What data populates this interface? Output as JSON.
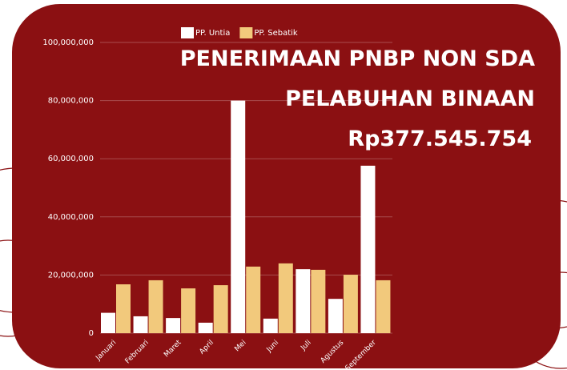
{
  "chart_data": {
    "type": "bar",
    "title": "PENERIMAAN PNBP NON SDA",
    "subtitle": "PELABUHAN BINAAN",
    "annotations": [
      "Rp377.545.754"
    ],
    "categories": [
      "Januari",
      "Februari",
      "Maret",
      "April",
      "Mei",
      "Juni",
      "Juli",
      "Agustus",
      "September"
    ],
    "series": [
      {
        "name": "PP. Untia",
        "color": "#ffffff",
        "values": [
          7000000,
          5800000,
          5200000,
          3600000,
          80000000,
          5000000,
          22000000,
          11800000,
          57600000
        ]
      },
      {
        "name": "PP. Sebatik",
        "color": "#f2c97c",
        "values": [
          16800000,
          18200000,
          15400000,
          16500000,
          22900000,
          24000000,
          21800000,
          20100000,
          18200000
        ]
      }
    ],
    "ylim": [
      0,
      100000000
    ],
    "yticks": [
      0,
      {
        "value": 20000000,
        "label": "20,000,000"
      },
      {
        "value": 40000000,
        "label": "40,000,000"
      },
      {
        "value": 60000000,
        "label": "60,000,000"
      },
      {
        "value": 80000000,
        "label": "80,000,000"
      },
      {
        "value": 100000000,
        "label": "100,000,000"
      }
    ],
    "grid": true,
    "legend": "top"
  }
}
